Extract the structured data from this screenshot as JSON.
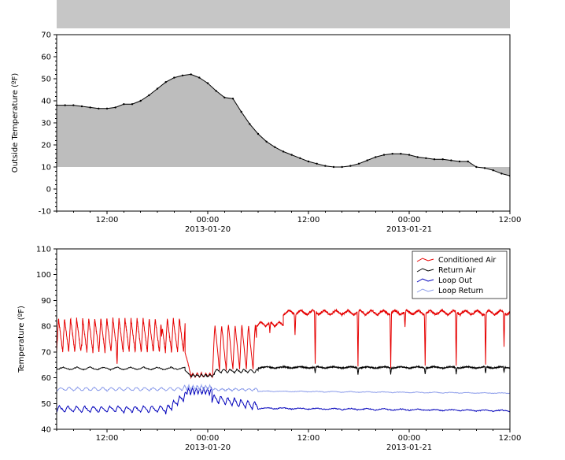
{
  "window": {
    "background": "#ffffff"
  },
  "decorations": {
    "cropped_plot_above": {
      "color": "#c6c6c6"
    }
  },
  "chart_data": [
    {
      "id": "outside-temperature",
      "type": "area",
      "title": "",
      "xlabel": "",
      "ylabel": "Outside Temperature (ºF)",
      "ylim": [
        -10,
        70
      ],
      "yticks": [
        -10,
        0,
        10,
        20,
        30,
        40,
        50,
        60,
        70
      ],
      "y_minor_step": 2,
      "x_hours_range": [
        0,
        54
      ],
      "x_minor_step": 2,
      "xticks": [
        {
          "t": 6,
          "label": "12:00"
        },
        {
          "t": 18,
          "label": "00:00",
          "date": "2013-01-20"
        },
        {
          "t": 30,
          "label": "12:00"
        },
        {
          "t": 42,
          "label": "00:00",
          "date": "2013-01-21"
        },
        {
          "t": 54,
          "label": "12:00"
        }
      ],
      "grid": false,
      "legend": null,
      "fill_baseline": 10,
      "fill_color": "#bdbdbd",
      "line_color": "#000000",
      "marker": "dot",
      "x": [
        0,
        1,
        2,
        3,
        4,
        5,
        6,
        7,
        8,
        9,
        10,
        11,
        12,
        13,
        14,
        15,
        16,
        17,
        18,
        19,
        20,
        21,
        22,
        23,
        24,
        25,
        26,
        27,
        28,
        29,
        30,
        31,
        32,
        33,
        34,
        35,
        36,
        37,
        38,
        39,
        40,
        41,
        42,
        43,
        44,
        45,
        46,
        47,
        48,
        49,
        50,
        51,
        52,
        53,
        54
      ],
      "y": [
        38,
        38,
        38,
        37.5,
        37,
        36.5,
        36.5,
        37,
        38.5,
        38.5,
        40,
        42.5,
        45.5,
        48.5,
        50.5,
        51.5,
        52,
        50.5,
        48,
        44.5,
        41.5,
        41,
        35,
        29.5,
        25,
        21.5,
        19,
        17,
        15.5,
        14,
        12.5,
        11.5,
        10.5,
        10,
        10,
        10.5,
        11.5,
        13,
        14.5,
        15.5,
        16,
        16,
        15.5,
        14.5,
        14,
        13.5,
        13.5,
        13,
        12.5,
        12.5,
        10,
        9.5,
        8.5,
        7,
        6
      ]
    },
    {
      "id": "loop-temperatures",
      "type": "line",
      "title": "",
      "xlabel": "",
      "ylabel": "Temperature (ºF)",
      "ylim": [
        40,
        110
      ],
      "yticks": [
        40,
        50,
        60,
        70,
        80,
        90,
        100,
        110
      ],
      "y_minor_step": 2,
      "x_hours_range": [
        0,
        54
      ],
      "x_minor_step": 2,
      "xticks": [
        {
          "t": 6,
          "label": "12:00"
        },
        {
          "t": 18,
          "label": "00:00",
          "date": "2013-01-20"
        },
        {
          "t": 30,
          "label": "12:00"
        },
        {
          "t": 42,
          "label": "00:00",
          "date": "2013-01-21"
        },
        {
          "t": 54,
          "label": "12:00"
        }
      ],
      "grid": false,
      "legend": {
        "position": "upper right",
        "entries": [
          "Conditioned Air",
          "Return Air",
          "Loop Out",
          "Loop Return"
        ]
      },
      "series": [
        {
          "name": "Conditioned Air",
          "color": "#e60000",
          "segments": [
            {
              "t0": 0,
              "t1": 15.3,
              "base": 76.5,
              "amp": 6.5,
              "period": 0.72,
              "shape": "spike",
              "noise": 0.5,
              "spikes": [
                {
                  "t": 3.0,
                  "d": 4
                },
                {
                  "t": 7.2,
                  "d": 5
                },
                {
                  "t": 12.5,
                  "d": 6
                }
              ]
            },
            {
              "t0": 15.3,
              "t1": 16.0,
              "from": 70,
              "to": 61,
              "shape": "ramp",
              "noise": 0.3
            },
            {
              "t0": 16.0,
              "t1": 18.6,
              "base": 61.0,
              "amp": 0.8,
              "period": 0.5,
              "shape": "tri",
              "noise": 0.3
            },
            {
              "t0": 18.6,
              "t1": 23.8,
              "base": 72.0,
              "amp": 9.0,
              "period": 0.8,
              "shape": "spike",
              "noise": 0.5
            },
            {
              "t0": 23.8,
              "t1": 27.0,
              "base": 80.8,
              "amp": 0.9,
              "period": 1.1,
              "shape": "tri",
              "noise": 0.3,
              "spikes": [
                {
                  "t": 25.4,
                  "d": 4
                }
              ]
            },
            {
              "t0": 27.0,
              "t1": 54.0,
              "base": 85.3,
              "amp": 0.9,
              "period": 1.4,
              "shape": "tri",
              "noise": 0.4,
              "spikes": [
                {
                  "t": 28.4,
                  "d": 8
                },
                {
                  "t": 30.8,
                  "d": 20
                },
                {
                  "t": 35.9,
                  "d": 21
                },
                {
                  "t": 39.8,
                  "d": 21
                },
                {
                  "t": 41.5,
                  "d": 6
                },
                {
                  "t": 43.9,
                  "d": 20
                },
                {
                  "t": 47.6,
                  "d": 21
                },
                {
                  "t": 51.1,
                  "d": 20
                },
                {
                  "t": 53.3,
                  "d": 13
                }
              ]
            }
          ]
        },
        {
          "name": "Return Air",
          "color": "#000000",
          "segments": [
            {
              "t0": 0,
              "t1": 15.3,
              "base": 63.6,
              "amp": 0.5,
              "period": 1.6,
              "shape": "tri",
              "noise": 0.2
            },
            {
              "t0": 15.3,
              "t1": 16.0,
              "from": 63,
              "to": 60.6,
              "shape": "ramp",
              "noise": 0.2
            },
            {
              "t0": 16.0,
              "t1": 18.8,
              "base": 60.8,
              "amp": 0.5,
              "period": 0.5,
              "shape": "tri",
              "noise": 0.2
            },
            {
              "t0": 18.8,
              "t1": 24.0,
              "base": 62.6,
              "amp": 0.7,
              "period": 0.8,
              "shape": "spike",
              "noise": 0.2
            },
            {
              "t0": 24.0,
              "t1": 54.0,
              "base": 64.0,
              "amp": 0.3,
              "period": 2.0,
              "shape": "tri",
              "noise": 0.2,
              "spikes": [
                {
                  "t": 30.8,
                  "d": 2.5
                },
                {
                  "t": 35.9,
                  "d": 2.5
                },
                {
                  "t": 39.8,
                  "d": 2.5
                },
                {
                  "t": 43.9,
                  "d": 2.5
                },
                {
                  "t": 47.6,
                  "d": 2.5
                },
                {
                  "t": 51.1,
                  "d": 2.5
                },
                {
                  "t": 53.3,
                  "d": 2
                }
              ]
            }
          ]
        },
        {
          "name": "Loop Out",
          "color": "#0000bb",
          "segments": [
            {
              "t0": 0,
              "t1": 13.0,
              "base": 47.8,
              "amp": 1.3,
              "period": 1.0,
              "shape": "spike",
              "noise": 0.3
            },
            {
              "t0": 13.0,
              "t1": 15.5,
              "from": 47.5,
              "to": 53.5,
              "amp": 1.5,
              "period": 0.7,
              "shape": "spike",
              "noise": 0.3
            },
            {
              "t0": 15.5,
              "t1": 18.5,
              "base": 54.8,
              "amp": 1.3,
              "period": 0.45,
              "shape": "tri",
              "noise": 0.3
            },
            {
              "t0": 18.5,
              "t1": 24.0,
              "from": 52.0,
              "to": 49.0,
              "amp": 1.6,
              "period": 0.8,
              "shape": "spike",
              "noise": 0.3
            },
            {
              "t0": 24.0,
              "t1": 54.0,
              "from": 48.2,
              "to": 47.2,
              "amp": 0.25,
              "period": 2.0,
              "shape": "tri",
              "noise": 0.2
            }
          ]
        },
        {
          "name": "Loop Return",
          "color": "#8a9bea",
          "segments": [
            {
              "t0": 0,
              "t1": 15.0,
              "base": 55.6,
              "amp": 0.7,
              "period": 1.0,
              "shape": "tri",
              "noise": 0.2
            },
            {
              "t0": 15.0,
              "t1": 18.5,
              "base": 56.2,
              "amp": 0.9,
              "period": 0.5,
              "shape": "tri",
              "noise": 0.2
            },
            {
              "t0": 18.5,
              "t1": 24.0,
              "base": 55.4,
              "amp": 0.5,
              "period": 0.8,
              "shape": "tri",
              "noise": 0.2
            },
            {
              "t0": 24.0,
              "t1": 54.0,
              "from": 54.8,
              "to": 54.0,
              "amp": 0.15,
              "period": 2.0,
              "shape": "tri",
              "noise": 0.1
            }
          ]
        }
      ]
    }
  ]
}
